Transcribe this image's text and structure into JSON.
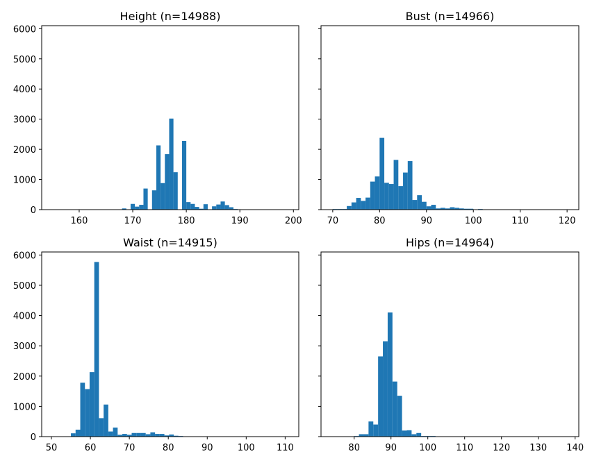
{
  "chart_data": [
    {
      "type": "bar",
      "title": "Height (n=14988)",
      "xlim": [
        153,
        201
      ],
      "ylim": [
        0,
        6100
      ],
      "xticks": [
        160,
        170,
        180,
        190,
        200
      ],
      "yticks": [
        0,
        1000,
        2000,
        3000,
        4000,
        5000,
        6000
      ],
      "show_yticklabels": true,
      "bar_color": "#1f77b4",
      "bins": [
        {
          "x0": 168.0,
          "x1": 168.8,
          "value": 40
        },
        {
          "x0": 169.6,
          "x1": 170.4,
          "value": 190
        },
        {
          "x0": 170.4,
          "x1": 171.2,
          "value": 100
        },
        {
          "x0": 171.2,
          "x1": 172.0,
          "value": 160
        },
        {
          "x0": 172.0,
          "x1": 172.8,
          "value": 700
        },
        {
          "x0": 173.6,
          "x1": 174.4,
          "value": 640
        },
        {
          "x0": 174.4,
          "x1": 175.2,
          "value": 2130
        },
        {
          "x0": 175.2,
          "x1": 176.0,
          "value": 880
        },
        {
          "x0": 176.0,
          "x1": 176.8,
          "value": 1840
        },
        {
          "x0": 176.8,
          "x1": 177.6,
          "value": 3020
        },
        {
          "x0": 177.6,
          "x1": 178.4,
          "value": 1240
        },
        {
          "x0": 179.2,
          "x1": 180.0,
          "value": 2280
        },
        {
          "x0": 180.0,
          "x1": 180.8,
          "value": 250
        },
        {
          "x0": 180.8,
          "x1": 181.6,
          "value": 190
        },
        {
          "x0": 181.6,
          "x1": 182.4,
          "value": 90
        },
        {
          "x0": 182.4,
          "x1": 183.2,
          "value": 30
        },
        {
          "x0": 183.2,
          "x1": 184.0,
          "value": 180
        },
        {
          "x0": 184.8,
          "x1": 185.6,
          "value": 110
        },
        {
          "x0": 185.6,
          "x1": 186.4,
          "value": 170
        },
        {
          "x0": 186.4,
          "x1": 187.2,
          "value": 270
        },
        {
          "x0": 187.2,
          "x1": 188.0,
          "value": 150
        },
        {
          "x0": 188.0,
          "x1": 188.8,
          "value": 80
        },
        {
          "x0": 188.8,
          "x1": 189.6,
          "value": 20
        }
      ]
    },
    {
      "type": "bar",
      "title": "Bust (n=14966)",
      "xlim": [
        67.5,
        122.5
      ],
      "ylim": [
        0,
        6100
      ],
      "xticks": [
        70,
        80,
        90,
        100,
        110,
        120
      ],
      "yticks": [
        0,
        1000,
        2000,
        3000,
        4000,
        5000,
        6000
      ],
      "show_yticklabels": false,
      "bar_color": "#1f77b4",
      "bins": [
        {
          "x0": 70.0,
          "x1": 71.0,
          "value": 20
        },
        {
          "x0": 71.0,
          "x1": 72.0,
          "value": 20
        },
        {
          "x0": 72.0,
          "x1": 73.0,
          "value": 20
        },
        {
          "x0": 73.0,
          "x1": 74.0,
          "value": 120
        },
        {
          "x0": 74.0,
          "x1": 75.0,
          "value": 240
        },
        {
          "x0": 75.0,
          "x1": 76.0,
          "value": 390
        },
        {
          "x0": 76.0,
          "x1": 77.0,
          "value": 290
        },
        {
          "x0": 77.0,
          "x1": 78.0,
          "value": 400
        },
        {
          "x0": 78.0,
          "x1": 79.0,
          "value": 930
        },
        {
          "x0": 79.0,
          "x1": 80.0,
          "value": 1100
        },
        {
          "x0": 80.0,
          "x1": 81.0,
          "value": 2380
        },
        {
          "x0": 81.0,
          "x1": 82.0,
          "value": 890
        },
        {
          "x0": 82.0,
          "x1": 83.0,
          "value": 850
        },
        {
          "x0": 83.0,
          "x1": 84.0,
          "value": 1650
        },
        {
          "x0": 84.0,
          "x1": 85.0,
          "value": 780
        },
        {
          "x0": 85.0,
          "x1": 86.0,
          "value": 1230
        },
        {
          "x0": 86.0,
          "x1": 87.0,
          "value": 1610
        },
        {
          "x0": 87.0,
          "x1": 88.0,
          "value": 320
        },
        {
          "x0": 88.0,
          "x1": 89.0,
          "value": 480
        },
        {
          "x0": 89.0,
          "x1": 90.0,
          "value": 260
        },
        {
          "x0": 90.0,
          "x1": 91.0,
          "value": 110
        },
        {
          "x0": 91.0,
          "x1": 92.0,
          "value": 160
        },
        {
          "x0": 92.0,
          "x1": 93.0,
          "value": 40
        },
        {
          "x0": 93.0,
          "x1": 94.0,
          "value": 60
        },
        {
          "x0": 94.0,
          "x1": 95.0,
          "value": 40
        },
        {
          "x0": 95.0,
          "x1": 96.0,
          "value": 80
        },
        {
          "x0": 96.0,
          "x1": 97.0,
          "value": 60
        },
        {
          "x0": 97.0,
          "x1": 98.0,
          "value": 40
        },
        {
          "x0": 98.0,
          "x1": 99.0,
          "value": 30
        },
        {
          "x0": 99.0,
          "x1": 100.0,
          "value": 30
        },
        {
          "x0": 100.0,
          "x1": 101.0,
          "value": 10
        },
        {
          "x0": 101.0,
          "x1": 102.0,
          "value": 20
        },
        {
          "x0": 102.0,
          "x1": 103.0,
          "value": 10
        }
      ]
    },
    {
      "type": "bar",
      "title": "Waist (n=14915)",
      "xlim": [
        47.5,
        113.5
      ],
      "ylim": [
        0,
        6100
      ],
      "xticks": [
        50,
        60,
        70,
        80,
        90,
        100,
        110
      ],
      "yticks": [
        0,
        1000,
        2000,
        3000,
        4000,
        5000,
        6000
      ],
      "show_yticklabels": true,
      "bar_color": "#1f77b4",
      "bins": [
        {
          "x0": 55.0,
          "x1": 56.2,
          "value": 110
        },
        {
          "x0": 56.2,
          "x1": 57.4,
          "value": 230
        },
        {
          "x0": 57.4,
          "x1": 58.6,
          "value": 1780
        },
        {
          "x0": 58.6,
          "x1": 59.8,
          "value": 1570
        },
        {
          "x0": 59.8,
          "x1": 61.0,
          "value": 2130
        },
        {
          "x0": 61.0,
          "x1": 62.2,
          "value": 5770
        },
        {
          "x0": 62.2,
          "x1": 63.4,
          "value": 610
        },
        {
          "x0": 63.4,
          "x1": 64.6,
          "value": 1060
        },
        {
          "x0": 64.6,
          "x1": 65.8,
          "value": 170
        },
        {
          "x0": 65.8,
          "x1": 67.0,
          "value": 300
        },
        {
          "x0": 67.0,
          "x1": 68.2,
          "value": 60
        },
        {
          "x0": 68.2,
          "x1": 69.4,
          "value": 90
        },
        {
          "x0": 69.4,
          "x1": 70.6,
          "value": 60
        },
        {
          "x0": 70.6,
          "x1": 71.8,
          "value": 120
        },
        {
          "x0": 71.8,
          "x1": 73.0,
          "value": 120
        },
        {
          "x0": 73.0,
          "x1": 74.2,
          "value": 120
        },
        {
          "x0": 74.2,
          "x1": 75.4,
          "value": 80
        },
        {
          "x0": 75.4,
          "x1": 76.6,
          "value": 140
        },
        {
          "x0": 76.6,
          "x1": 77.8,
          "value": 90
        },
        {
          "x0": 77.8,
          "x1": 79.0,
          "value": 90
        },
        {
          "x0": 79.0,
          "x1": 80.2,
          "value": 40
        },
        {
          "x0": 80.2,
          "x1": 81.4,
          "value": 70
        },
        {
          "x0": 81.4,
          "x1": 82.6,
          "value": 30
        },
        {
          "x0": 82.6,
          "x1": 83.8,
          "value": 20
        }
      ]
    },
    {
      "type": "bar",
      "title": "Hips (n=14964)",
      "xlim": [
        71,
        141
      ],
      "ylim": [
        0,
        6100
      ],
      "xticks": [
        80,
        90,
        100,
        110,
        120,
        130,
        140
      ],
      "yticks": [
        0,
        1000,
        2000,
        3000,
        4000,
        5000,
        6000
      ],
      "show_yticklabels": false,
      "bar_color": "#1f77b4",
      "bins": [
        {
          "x0": 80.0,
          "x1": 81.3,
          "value": 20
        },
        {
          "x0": 81.3,
          "x1": 82.6,
          "value": 80
        },
        {
          "x0": 82.6,
          "x1": 83.9,
          "value": 80
        },
        {
          "x0": 83.9,
          "x1": 85.2,
          "value": 500
        },
        {
          "x0": 85.2,
          "x1": 86.5,
          "value": 400
        },
        {
          "x0": 86.5,
          "x1": 87.8,
          "value": 2650
        },
        {
          "x0": 87.8,
          "x1": 89.1,
          "value": 3150
        },
        {
          "x0": 89.1,
          "x1": 90.4,
          "value": 4100
        },
        {
          "x0": 90.4,
          "x1": 91.7,
          "value": 1820
        },
        {
          "x0": 91.7,
          "x1": 93.0,
          "value": 1350
        },
        {
          "x0": 93.0,
          "x1": 94.3,
          "value": 200
        },
        {
          "x0": 94.3,
          "x1": 95.6,
          "value": 210
        },
        {
          "x0": 95.6,
          "x1": 96.9,
          "value": 80
        },
        {
          "x0": 96.9,
          "x1": 98.2,
          "value": 120
        },
        {
          "x0": 98.2,
          "x1": 99.5,
          "value": 20
        },
        {
          "x0": 99.5,
          "x1": 100.8,
          "value": 20
        },
        {
          "x0": 100.8,
          "x1": 102.1,
          "value": 20
        }
      ]
    }
  ]
}
